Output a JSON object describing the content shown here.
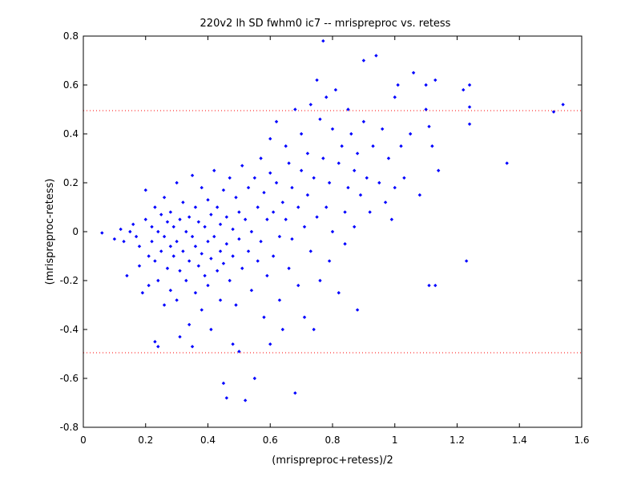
{
  "chart_data": {
    "type": "scatter",
    "title": "220v2 lh SD fwhm0 ic7 -- mrispreproc vs. retess",
    "xlabel": "(mrispreproc+retess)/2",
    "ylabel": "(mrispreproc-retess)",
    "xlim": [
      0,
      1.6
    ],
    "ylim": [
      -0.8,
      0.8
    ],
    "xticks": [
      "0",
      "0.2",
      "0.4",
      "0.6",
      "0.8",
      "1",
      "1.2",
      "1.4",
      "1.6"
    ],
    "yticks": [
      "0.8",
      "0.6",
      "0.4",
      "0.2",
      "0",
      "-0.2",
      "-0.4",
      "-0.6",
      "-0.8"
    ],
    "grid": false,
    "marker_color": "#0000ff",
    "reference_lines": [
      {
        "y": 0.495,
        "color": "#ff0000",
        "style": "dotted"
      },
      {
        "y": -0.495,
        "color": "#ff0000",
        "style": "dotted"
      }
    ],
    "series": [
      {
        "points": [
          [
            0.06,
            -0.005
          ],
          [
            0.1,
            -0.03
          ],
          [
            0.12,
            0.01
          ],
          [
            0.13,
            -0.04
          ],
          [
            0.14,
            -0.18
          ],
          [
            0.15,
            0.0
          ],
          [
            0.16,
            0.03
          ],
          [
            0.17,
            -0.02
          ],
          [
            0.18,
            -0.06
          ],
          [
            0.18,
            -0.14
          ],
          [
            0.19,
            -0.25
          ],
          [
            0.2,
            0.17
          ],
          [
            0.2,
            0.05
          ],
          [
            0.21,
            -0.1
          ],
          [
            0.21,
            -0.22
          ],
          [
            0.22,
            0.02
          ],
          [
            0.22,
            -0.04
          ],
          [
            0.23,
            0.1
          ],
          [
            0.23,
            -0.12
          ],
          [
            0.23,
            -0.45
          ],
          [
            0.24,
            0.0
          ],
          [
            0.24,
            -0.2
          ],
          [
            0.24,
            -0.47
          ],
          [
            0.25,
            0.07
          ],
          [
            0.25,
            -0.08
          ],
          [
            0.26,
            0.14
          ],
          [
            0.26,
            -0.02
          ],
          [
            0.26,
            -0.3
          ],
          [
            0.27,
            0.04
          ],
          [
            0.27,
            -0.15
          ],
          [
            0.28,
            0.08
          ],
          [
            0.28,
            -0.06
          ],
          [
            0.28,
            -0.24
          ],
          [
            0.29,
            0.02
          ],
          [
            0.29,
            -0.1
          ],
          [
            0.3,
            0.2
          ],
          [
            0.3,
            -0.04
          ],
          [
            0.3,
            -0.28
          ],
          [
            0.31,
            0.05
          ],
          [
            0.31,
            -0.16
          ],
          [
            0.31,
            -0.43
          ],
          [
            0.32,
            0.12
          ],
          [
            0.32,
            -0.08
          ],
          [
            0.33,
            0.0
          ],
          [
            0.33,
            -0.2
          ],
          [
            0.34,
            0.06
          ],
          [
            0.34,
            -0.12
          ],
          [
            0.34,
            -0.38
          ],
          [
            0.35,
            0.23
          ],
          [
            0.35,
            -0.02
          ],
          [
            0.35,
            -0.47
          ],
          [
            0.36,
            0.1
          ],
          [
            0.36,
            -0.06
          ],
          [
            0.36,
            -0.25
          ],
          [
            0.37,
            0.04
          ],
          [
            0.37,
            -0.14
          ],
          [
            0.38,
            0.18
          ],
          [
            0.38,
            -0.09
          ],
          [
            0.38,
            -0.32
          ],
          [
            0.39,
            0.02
          ],
          [
            0.39,
            -0.18
          ],
          [
            0.4,
            0.13
          ],
          [
            0.4,
            -0.04
          ],
          [
            0.4,
            -0.22
          ],
          [
            0.41,
            0.07
          ],
          [
            0.41,
            -0.11
          ],
          [
            0.41,
            -0.4
          ],
          [
            0.42,
            0.25
          ],
          [
            0.42,
            -0.02
          ],
          [
            0.43,
            0.1
          ],
          [
            0.43,
            -0.16
          ],
          [
            0.44,
            0.03
          ],
          [
            0.44,
            -0.08
          ],
          [
            0.44,
            -0.28
          ],
          [
            0.45,
            0.17
          ],
          [
            0.45,
            -0.13
          ],
          [
            0.45,
            -0.62
          ],
          [
            0.46,
            0.06
          ],
          [
            0.46,
            -0.05
          ],
          [
            0.46,
            -0.68
          ],
          [
            0.47,
            0.22
          ],
          [
            0.47,
            -0.2
          ],
          [
            0.48,
            0.01
          ],
          [
            0.48,
            -0.1
          ],
          [
            0.48,
            -0.46
          ],
          [
            0.49,
            0.14
          ],
          [
            0.49,
            -0.3
          ],
          [
            0.5,
            0.08
          ],
          [
            0.5,
            -0.03
          ],
          [
            0.5,
            -0.49
          ],
          [
            0.51,
            0.27
          ],
          [
            0.51,
            -0.15
          ],
          [
            0.52,
            0.05
          ],
          [
            0.52,
            -0.69
          ],
          [
            0.53,
            0.18
          ],
          [
            0.53,
            -0.08
          ],
          [
            0.54,
            0.0
          ],
          [
            0.54,
            -0.24
          ],
          [
            0.55,
            0.22
          ],
          [
            0.55,
            -0.6
          ],
          [
            0.56,
            0.1
          ],
          [
            0.56,
            -0.12
          ],
          [
            0.57,
            0.3
          ],
          [
            0.57,
            -0.04
          ],
          [
            0.58,
            0.16
          ],
          [
            0.58,
            -0.35
          ],
          [
            0.59,
            0.05
          ],
          [
            0.59,
            -0.18
          ],
          [
            0.6,
            0.38
          ],
          [
            0.6,
            0.24
          ],
          [
            0.6,
            -0.46
          ],
          [
            0.61,
            0.08
          ],
          [
            0.61,
            -0.1
          ],
          [
            0.62,
            0.45
          ],
          [
            0.62,
            0.2
          ],
          [
            0.63,
            -0.02
          ],
          [
            0.63,
            -0.28
          ],
          [
            0.64,
            0.12
          ],
          [
            0.64,
            -0.4
          ],
          [
            0.65,
            0.35
          ],
          [
            0.65,
            0.05
          ],
          [
            0.66,
            0.28
          ],
          [
            0.66,
            -0.15
          ],
          [
            0.67,
            0.18
          ],
          [
            0.67,
            -0.03
          ],
          [
            0.68,
            0.5
          ],
          [
            0.68,
            -0.66
          ],
          [
            0.69,
            0.1
          ],
          [
            0.69,
            -0.22
          ],
          [
            0.7,
            0.4
          ],
          [
            0.7,
            0.25
          ],
          [
            0.71,
            0.02
          ],
          [
            0.71,
            -0.35
          ],
          [
            0.72,
            0.32
          ],
          [
            0.72,
            0.15
          ],
          [
            0.73,
            0.52
          ],
          [
            0.73,
            -0.08
          ],
          [
            0.74,
            0.22
          ],
          [
            0.74,
            -0.4
          ],
          [
            0.75,
            0.62
          ],
          [
            0.75,
            0.06
          ],
          [
            0.76,
            0.46
          ],
          [
            0.76,
            -0.2
          ],
          [
            0.77,
            0.78
          ],
          [
            0.77,
            0.3
          ],
          [
            0.78,
            0.55
          ],
          [
            0.78,
            0.1
          ],
          [
            0.79,
            0.2
          ],
          [
            0.79,
            -0.12
          ],
          [
            0.8,
            0.42
          ],
          [
            0.8,
            0.0
          ],
          [
            0.81,
            0.58
          ],
          [
            0.82,
            0.28
          ],
          [
            0.82,
            -0.25
          ],
          [
            0.83,
            0.35
          ],
          [
            0.84,
            0.08
          ],
          [
            0.84,
            -0.05
          ],
          [
            0.85,
            0.5
          ],
          [
            0.85,
            0.18
          ],
          [
            0.86,
            0.4
          ],
          [
            0.87,
            0.25
          ],
          [
            0.87,
            0.02
          ],
          [
            0.88,
            0.32
          ],
          [
            0.88,
            -0.32
          ],
          [
            0.89,
            0.15
          ],
          [
            0.9,
            0.45
          ],
          [
            0.9,
            0.7
          ],
          [
            0.91,
            0.22
          ],
          [
            0.92,
            0.08
          ],
          [
            0.93,
            0.35
          ],
          [
            0.94,
            0.72
          ],
          [
            0.95,
            0.2
          ],
          [
            0.96,
            0.42
          ],
          [
            0.97,
            0.12
          ],
          [
            0.98,
            0.3
          ],
          [
            0.99,
            0.05
          ],
          [
            1.0,
            0.55
          ],
          [
            1.0,
            0.18
          ],
          [
            1.01,
            0.6
          ],
          [
            1.02,
            0.35
          ],
          [
            1.03,
            0.22
          ],
          [
            1.05,
            0.4
          ],
          [
            1.06,
            0.65
          ],
          [
            1.08,
            0.15
          ],
          [
            1.1,
            0.6
          ],
          [
            1.1,
            0.5
          ],
          [
            1.11,
            0.43
          ],
          [
            1.11,
            -0.22
          ],
          [
            1.12,
            0.35
          ],
          [
            1.13,
            0.62
          ],
          [
            1.13,
            -0.22
          ],
          [
            1.14,
            0.25
          ],
          [
            1.22,
            0.58
          ],
          [
            1.23,
            -0.12
          ],
          [
            1.24,
            0.51
          ],
          [
            1.24,
            0.6
          ],
          [
            1.24,
            0.44
          ],
          [
            1.36,
            0.28
          ],
          [
            1.51,
            0.49
          ],
          [
            1.54,
            0.52
          ]
        ]
      }
    ]
  }
}
